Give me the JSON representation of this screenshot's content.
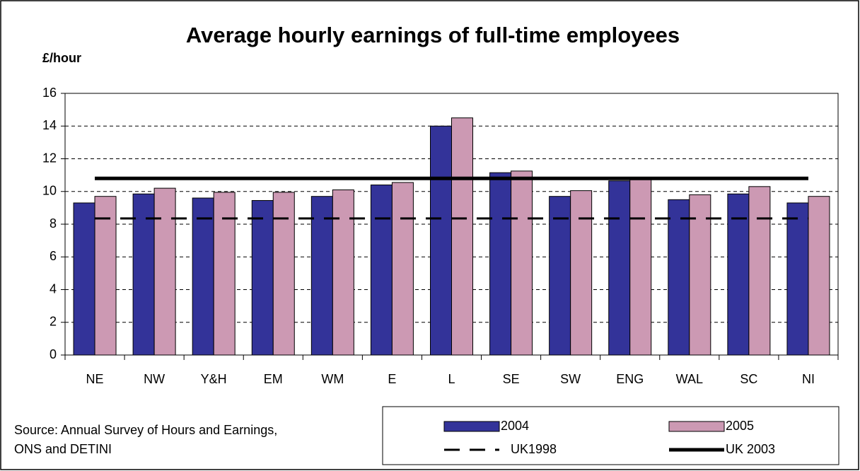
{
  "chart_data": {
    "type": "bar",
    "title": "Average hourly earnings of full-time employees",
    "y_axis_label": "£/hour",
    "source": [
      "Source: Annual Survey of Hours and Earnings,",
      "ONS and DETINI"
    ],
    "categories": [
      "NE",
      "NW",
      "Y&H",
      "EM",
      "WM",
      "E",
      "L",
      "SE",
      "SW",
      "ENG",
      "WAL",
      "SC",
      "NI"
    ],
    "series": [
      {
        "name": "2004",
        "type": "bar",
        "color": "#333399",
        "values": [
          9.3,
          9.85,
          9.6,
          9.45,
          9.7,
          10.4,
          14.0,
          11.15,
          9.7,
          10.65,
          9.5,
          9.85,
          9.3
        ]
      },
      {
        "name": "2005",
        "type": "bar",
        "color": "#cc99b3",
        "values": [
          9.7,
          10.2,
          9.95,
          9.95,
          10.1,
          10.55,
          14.5,
          11.25,
          10.05,
          10.85,
          9.8,
          10.3,
          9.7
        ]
      },
      {
        "name": "UK1998",
        "type": "line",
        "dashed": true,
        "color": "#000000",
        "values": [
          8.35,
          8.35,
          8.35,
          8.35,
          8.35,
          8.35,
          8.35,
          8.35,
          8.35,
          8.35,
          8.35,
          8.35,
          8.35
        ]
      },
      {
        "name": "UK 2003",
        "type": "line",
        "dashed": false,
        "color": "#000000",
        "values": [
          10.8,
          10.8,
          10.8,
          10.8,
          10.8,
          10.8,
          10.8,
          10.8,
          10.8,
          10.8,
          10.8,
          10.8,
          10.8
        ]
      }
    ],
    "ylim": [
      0,
      16
    ],
    "yticks": [
      0,
      2,
      4,
      6,
      8,
      10,
      12,
      14,
      16
    ],
    "grid": true
  }
}
